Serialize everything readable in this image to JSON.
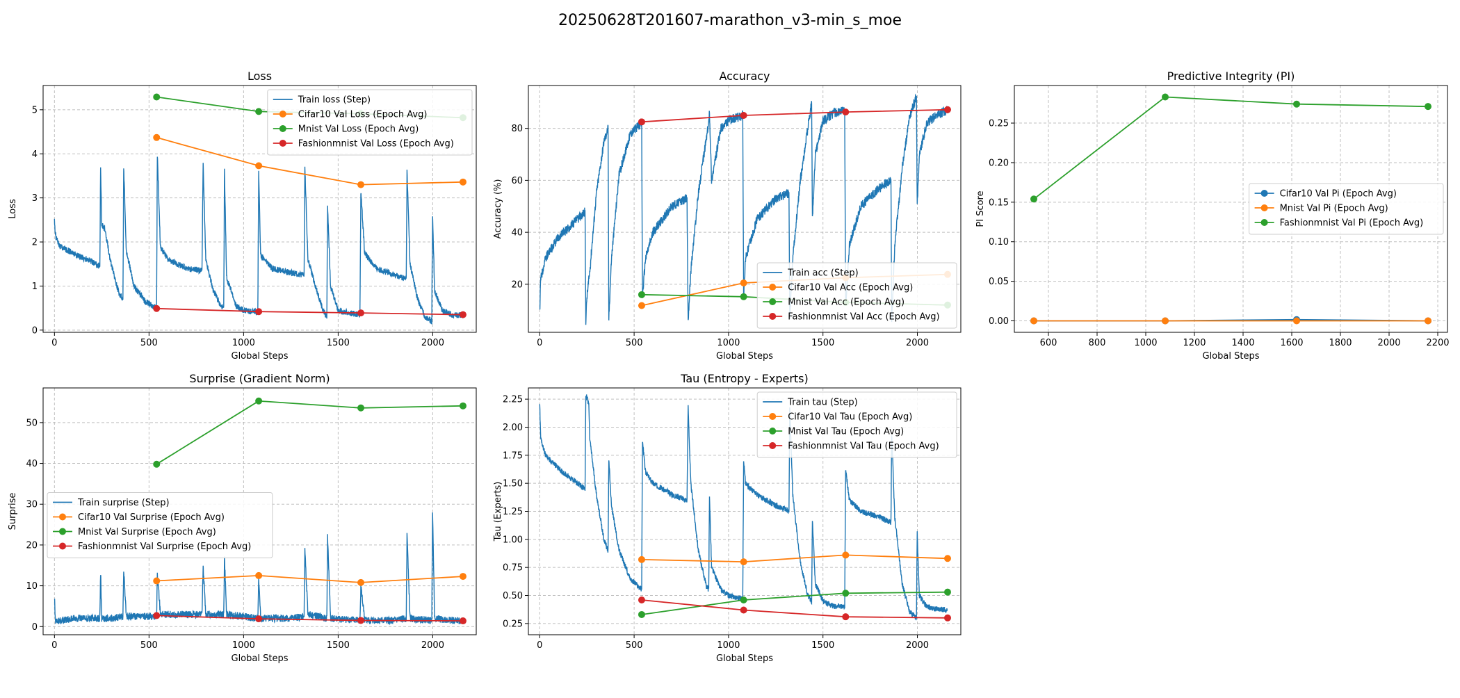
{
  "figure": {
    "title": "20250628T201607-marathon_v3-min_s_moe"
  },
  "chart_data": [
    {
      "type": "line",
      "title": "Loss",
      "xlabel": "Global Steps",
      "ylabel": "Loss",
      "xlim": [
        -60,
        2230
      ],
      "ylim": [
        -0.05,
        5.55
      ],
      "xticks": [
        0,
        500,
        1000,
        1500,
        2000
      ],
      "yticks": [
        0,
        1,
        2,
        3,
        4,
        5
      ],
      "grid": true,
      "legend_position": "top-right",
      "series": [
        {
          "name": "Train loss (Step)",
          "color": "#1f77b4",
          "marker": "none",
          "noise": 0.07,
          "x": [
            0,
            5,
            30,
            120,
            200,
            240,
            244,
            250,
            265,
            300,
            340,
            362,
            366,
            380,
            420,
            480,
            540,
            544,
            560,
            600,
            700,
            780,
            786,
            800,
            840,
            880,
            895,
            899,
            910,
            960,
            1000,
            1075,
            1080,
            1090,
            1150,
            1250,
            1320,
            1324,
            1340,
            1380,
            1420,
            1440,
            1444,
            1460,
            1500,
            1560,
            1615,
            1620,
            1640,
            1700,
            1800,
            1860,
            1864,
            1880,
            1920,
            1960,
            1995,
            1999,
            2010,
            2050,
            2100,
            2160
          ],
          "y": [
            2.5,
            2.15,
            1.9,
            1.7,
            1.55,
            1.45,
            3.75,
            2.4,
            2.3,
            1.5,
            0.85,
            0.7,
            3.7,
            1.8,
            1.0,
            0.65,
            0.5,
            4.0,
            1.9,
            1.6,
            1.4,
            1.35,
            3.8,
            1.6,
            0.9,
            0.55,
            0.5,
            3.6,
            1.2,
            0.55,
            0.45,
            0.4,
            3.6,
            1.7,
            1.4,
            1.3,
            1.25,
            3.7,
            1.6,
            1.0,
            0.45,
            0.3,
            2.85,
            1.0,
            0.45,
            0.38,
            0.35,
            3.15,
            1.75,
            1.4,
            1.25,
            1.15,
            3.6,
            1.5,
            0.7,
            0.3,
            0.2,
            2.65,
            0.9,
            0.45,
            0.35,
            0.33
          ]
        },
        {
          "name": "Cifar10 Val Loss (Epoch Avg)",
          "color": "#ff7f0e",
          "marker": "o",
          "x": [
            540,
            1080,
            1620,
            2160
          ],
          "y": [
            4.37,
            3.73,
            3.3,
            3.36
          ]
        },
        {
          "name": "Mnist Val Loss (Epoch Avg)",
          "color": "#2ca02c",
          "marker": "o",
          "x": [
            540,
            1080,
            1620,
            2160
          ],
          "y": [
            5.29,
            4.96,
            4.91,
            4.82
          ]
        },
        {
          "name": "Fashionmnist Val Loss (Epoch Avg)",
          "color": "#d62728",
          "marker": "o",
          "x": [
            540,
            1080,
            1620,
            2160
          ],
          "y": [
            0.49,
            0.42,
            0.39,
            0.35
          ]
        }
      ]
    },
    {
      "type": "line",
      "title": "Accuracy",
      "xlabel": "Global Steps",
      "ylabel": "Accuracy (%)",
      "xlim": [
        -60,
        2230
      ],
      "ylim": [
        1.5,
        96.5
      ],
      "xticks": [
        0,
        500,
        1000,
        1500,
        2000
      ],
      "yticks": [
        20,
        40,
        60,
        80
      ],
      "grid": true,
      "legend_position": "bottom-right",
      "series": [
        {
          "name": "Train acc (Step)",
          "color": "#1f77b4",
          "marker": "none",
          "noise": 1.8,
          "x": [
            0,
            5,
            30,
            100,
            200,
            240,
            244,
            250,
            265,
            300,
            340,
            362,
            366,
            380,
            420,
            480,
            540,
            544,
            560,
            600,
            700,
            780,
            786,
            800,
            840,
            880,
            895,
            899,
            910,
            960,
            1000,
            1075,
            1080,
            1090,
            1150,
            1250,
            1320,
            1324,
            1340,
            1380,
            1420,
            1440,
            1444,
            1460,
            1500,
            1560,
            1615,
            1620,
            1640,
            1700,
            1800,
            1860,
            1864,
            1880,
            1920,
            1960,
            1995,
            1999,
            2010,
            2050,
            2100,
            2160
          ],
          "y": [
            9,
            22,
            30,
            38,
            45,
            48,
            6,
            15,
            25,
            55,
            75,
            80,
            7,
            30,
            62,
            78,
            82,
            15,
            30,
            40,
            50,
            53,
            6,
            25,
            55,
            75,
            82,
            86,
            60,
            80,
            83,
            85,
            14,
            30,
            45,
            53,
            55,
            6,
            30,
            60,
            80,
            90,
            45,
            70,
            83,
            86,
            87,
            12,
            35,
            50,
            57,
            60,
            6,
            35,
            65,
            85,
            92,
            50,
            70,
            82,
            85,
            87
          ]
        },
        {
          "name": "Cifar10 Val Acc (Epoch Avg)",
          "color": "#ff7f0e",
          "marker": "o",
          "x": [
            540,
            1080,
            1620,
            2160
          ],
          "y": [
            11.8,
            20.5,
            22.5,
            23.8
          ]
        },
        {
          "name": "Mnist Val Acc (Epoch Avg)",
          "color": "#2ca02c",
          "marker": "o",
          "x": [
            540,
            1080,
            1620,
            2160
          ],
          "y": [
            16,
            15.2,
            13,
            12
          ]
        },
        {
          "name": "Fashionmnist Val Acc (Epoch Avg)",
          "color": "#d62728",
          "marker": "o",
          "x": [
            540,
            1080,
            1620,
            2160
          ],
          "y": [
            82.5,
            85,
            86.3,
            87.2
          ]
        }
      ]
    },
    {
      "type": "line",
      "title": "Predictive Integrity (PI)",
      "xlabel": "Global Steps",
      "ylabel": "PI Score",
      "xlim": [
        460,
        2240
      ],
      "ylim": [
        -0.0145,
        0.2975
      ],
      "xticks": [
        600,
        800,
        1000,
        1200,
        1400,
        1600,
        1800,
        2000,
        2200
      ],
      "yticks": [
        0.0,
        0.05,
        0.1,
        0.15,
        0.2,
        0.25
      ],
      "ytick_labels": [
        "0.00",
        "0.05",
        "0.10",
        "0.15",
        "0.20",
        "0.25"
      ],
      "grid": true,
      "legend_position": "center-right",
      "series": [
        {
          "name": "Cifar10 Val Pi (Epoch Avg)",
          "color": "#1f77b4",
          "marker": "o",
          "x": [
            540,
            1080,
            1620,
            2160
          ],
          "y": [
            0.0,
            0.0,
            0.0015,
            0.0
          ]
        },
        {
          "name": "Mnist Val Pi (Epoch Avg)",
          "color": "#ff7f0e",
          "marker": "o",
          "x": [
            540,
            1080,
            1620,
            2160
          ],
          "y": [
            0.0,
            0.0,
            0.0,
            0.0
          ]
        },
        {
          "name": "Fashionmnist Val Pi (Epoch Avg)",
          "color": "#2ca02c",
          "marker": "o",
          "x": [
            540,
            1080,
            1620,
            2160
          ],
          "y": [
            0.154,
            0.283,
            0.274,
            0.271
          ]
        }
      ]
    },
    {
      "type": "line",
      "title": "Surprise (Gradient Norm)",
      "xlabel": "Global Steps",
      "ylabel": "Surprise",
      "xlim": [
        -60,
        2230
      ],
      "ylim": [
        -2.0,
        58.5
      ],
      "xticks": [
        0,
        500,
        1000,
        1500,
        2000
      ],
      "yticks": [
        0,
        10,
        20,
        30,
        40,
        50
      ],
      "grid": true,
      "legend_position": "center-left",
      "series": [
        {
          "name": "Train surprise (Step)",
          "color": "#1f77b4",
          "marker": "none",
          "noise": 0.9,
          "x": [
            0,
            5,
            30,
            100,
            200,
            240,
            244,
            250,
            300,
            362,
            366,
            380,
            480,
            540,
            544,
            560,
            700,
            780,
            786,
            800,
            895,
            899,
            910,
            1075,
            1080,
            1090,
            1250,
            1320,
            1324,
            1340,
            1440,
            1444,
            1460,
            1615,
            1620,
            1640,
            1800,
            1860,
            1864,
            1880,
            1995,
            1999,
            2010,
            2100,
            2160
          ],
          "y": [
            7,
            1.5,
            1.5,
            2,
            2,
            2,
            13.5,
            2,
            2,
            2.5,
            14,
            2.5,
            2.5,
            2.5,
            13,
            3,
            3,
            3,
            14.5,
            3,
            3,
            17,
            3,
            2,
            12,
            2,
            2,
            2.5,
            19,
            3,
            2,
            22,
            2,
            1.5,
            10,
            1.5,
            1.5,
            2,
            23,
            2,
            1.5,
            28.5,
            2,
            1.5,
            1.5
          ]
        },
        {
          "name": "Cifar10 Val Surprise (Epoch Avg)",
          "color": "#ff7f0e",
          "marker": "o",
          "x": [
            540,
            1080,
            1620,
            2160
          ],
          "y": [
            11.2,
            12.5,
            10.8,
            12.3
          ]
        },
        {
          "name": "Mnist Val Surprise (Epoch Avg)",
          "color": "#2ca02c",
          "marker": "o",
          "x": [
            540,
            1080,
            1620,
            2160
          ],
          "y": [
            39.8,
            55.3,
            53.6,
            54.1
          ]
        },
        {
          "name": "Fashionmnist Val Surprise (Epoch Avg)",
          "color": "#d62728",
          "marker": "o",
          "x": [
            540,
            1080,
            1620,
            2160
          ],
          "y": [
            2.7,
            1.9,
            1.5,
            1.4
          ]
        }
      ]
    },
    {
      "type": "line",
      "title": "Tau (Entropy - Experts)",
      "xlabel": "Global Steps",
      "ylabel": "Tau (Experts)",
      "xlim": [
        -60,
        2230
      ],
      "ylim": [
        0.15,
        2.35
      ],
      "xticks": [
        0,
        500,
        1000,
        1500,
        2000
      ],
      "yticks": [
        0.25,
        0.5,
        0.75,
        1.0,
        1.25,
        1.5,
        1.75,
        2.0,
        2.25
      ],
      "ytick_labels": [
        "0.25",
        "0.50",
        "0.75",
        "1.00",
        "1.25",
        "1.50",
        "1.75",
        "2.00",
        "2.25"
      ],
      "grid": true,
      "legend_position": "top-right",
      "series": [
        {
          "name": "Train tau (Step)",
          "color": "#1f77b4",
          "marker": "none",
          "noise": 0.025,
          "x": [
            0,
            5,
            30,
            120,
            200,
            240,
            244,
            250,
            260,
            265,
            300,
            340,
            362,
            366,
            380,
            420,
            480,
            540,
            544,
            560,
            600,
            700,
            780,
            786,
            800,
            840,
            880,
            895,
            899,
            910,
            960,
            1000,
            1075,
            1080,
            1090,
            1150,
            1250,
            1320,
            1324,
            1340,
            1380,
            1420,
            1440,
            1444,
            1460,
            1500,
            1560,
            1615,
            1620,
            1640,
            1700,
            1800,
            1860,
            1864,
            1880,
            1920,
            1960,
            1995,
            1999,
            2010,
            2050,
            2100,
            2160
          ],
          "y": [
            2.2,
            1.9,
            1.75,
            1.6,
            1.5,
            1.45,
            2.25,
            2.28,
            2.2,
            1.9,
            1.4,
            1.0,
            0.9,
            1.72,
            1.3,
            0.9,
            0.65,
            0.55,
            1.88,
            1.6,
            1.5,
            1.4,
            1.35,
            2.18,
            1.5,
            0.9,
            0.6,
            0.55,
            1.4,
            0.75,
            0.55,
            0.5,
            0.47,
            1.7,
            1.5,
            1.4,
            1.3,
            1.25,
            2.2,
            1.4,
            0.8,
            0.5,
            0.45,
            1.17,
            0.6,
            0.45,
            0.4,
            0.4,
            1.62,
            1.35,
            1.25,
            1.2,
            1.15,
            1.95,
            1.2,
            0.6,
            0.35,
            0.3,
            1.05,
            0.5,
            0.4,
            0.38,
            0.37
          ]
        },
        {
          "name": "Cifar10 Val Tau (Epoch Avg)",
          "color": "#ff7f0e",
          "marker": "o",
          "x": [
            540,
            1080,
            1620,
            2160
          ],
          "y": [
            0.82,
            0.8,
            0.86,
            0.83
          ]
        },
        {
          "name": "Mnist Val Tau (Epoch Avg)",
          "color": "#2ca02c",
          "marker": "o",
          "x": [
            540,
            1080,
            1620,
            2160
          ],
          "y": [
            0.33,
            0.46,
            0.52,
            0.53
          ]
        },
        {
          "name": "Fashionmnist Val Tau (Epoch Avg)",
          "color": "#d62728",
          "marker": "o",
          "x": [
            540,
            1080,
            1620,
            2160
          ],
          "y": [
            0.46,
            0.37,
            0.31,
            0.3
          ]
        }
      ]
    }
  ]
}
